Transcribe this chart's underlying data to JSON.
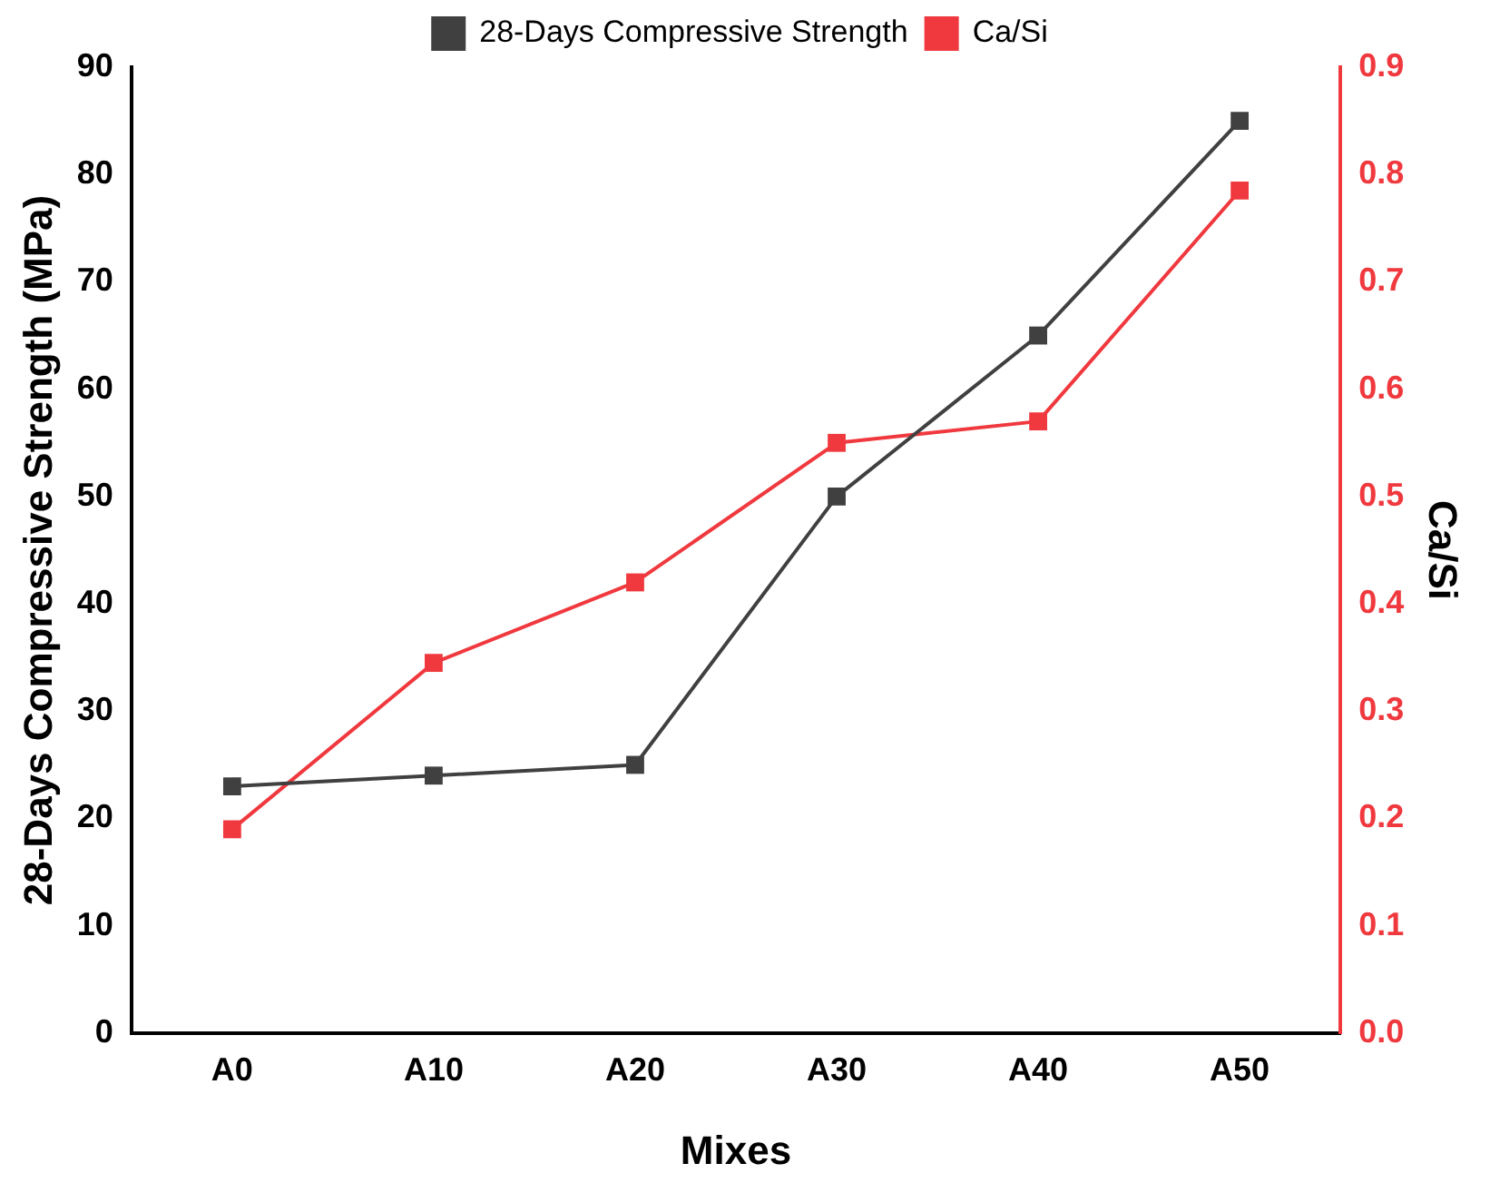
{
  "chart_data": {
    "type": "line",
    "xlabel": "Mixes",
    "ylabel": "28-Days Compressive Strength (MPa)",
    "y2label": "Ca/Si",
    "categories": [
      "A0",
      "A10",
      "A20",
      "A30",
      "A40",
      "A50"
    ],
    "series": [
      {
        "name": "28-Days Compressive Strength",
        "color": "#404040",
        "values": [
          23,
          24,
          25,
          50,
          65,
          85
        ]
      },
      {
        "name": "Ca/Si",
        "color": "#f0393e",
        "axis": "y2",
        "values": [
          0.19,
          0.345,
          0.42,
          0.55,
          0.57,
          0.785
        ]
      }
    ],
    "ylim": [
      0,
      90
    ],
    "yticks": [
      0,
      10,
      20,
      30,
      40,
      50,
      60,
      70,
      80,
      90
    ],
    "y2lim": [
      0,
      0.9
    ],
    "y2ticks": [
      {
        "value": 0,
        "label": "0.0"
      },
      0.1,
      0.2,
      0.3,
      0.4,
      0.5,
      0.6,
      0.7,
      0.8,
      0.9
    ],
    "legend": "top",
    "marker": "square",
    "line_style": "solid",
    "grid": false
  }
}
